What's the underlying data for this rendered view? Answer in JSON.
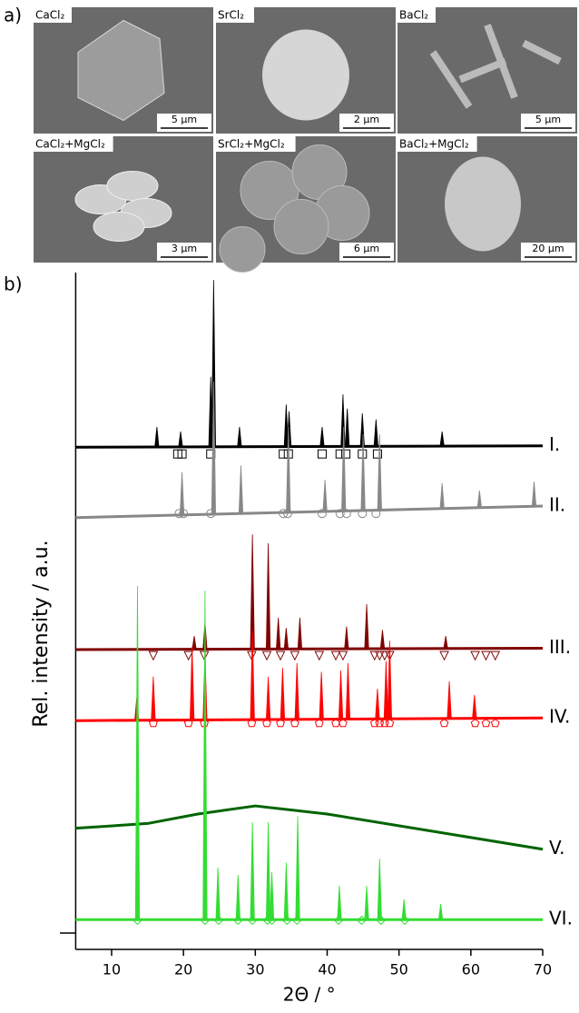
{
  "panel_labels": [
    "a)",
    "b)"
  ],
  "images": [
    {
      "label": "CaCl₂",
      "scale": "5 µm"
    },
    {
      "label": "SrCl₂",
      "scale": "2 µm"
    },
    {
      "label": "BaCl₂",
      "scale": "5 µm"
    },
    {
      "label": "CaCl₂+MgCl₂",
      "scale": "3 µm"
    },
    {
      "label": "SrCl₂+MgCl₂",
      "scale": "6 µm"
    },
    {
      "label": "BaCl₂+MgCl₂",
      "scale": "20 µm"
    }
  ],
  "chart_data": {
    "type": "peaks",
    "ylabel": "Rel. intensity / a.u.",
    "xlabel": "2Θ / °",
    "xlim": [
      5,
      70
    ],
    "xticks": [
      10,
      20,
      30,
      40,
      50,
      60,
      70
    ],
    "ylim": [
      0,
      100
    ],
    "series": [
      {
        "name": "I.",
        "color": "#000000",
        "baseline": {
          "x": [
            5,
            70
          ],
          "values": [
            74.2,
            74.4
          ]
        },
        "peaks": {
          "x": [
            16.3,
            19.6,
            23.8,
            24.2,
            27.8,
            34.3,
            34.7,
            39.3,
            42.2,
            42.8,
            44.9,
            46.8,
            56
          ],
          "values": [
            77.2,
            76.5,
            84.6,
            98.9,
            77.2,
            80.5,
            79.5,
            77.2,
            82.0,
            79.9,
            79.2,
            78.3,
            76.5
          ]
        },
        "markers": {
          "symbol": "square",
          "x": [
            19.2,
            19.8,
            23.8,
            33.9,
            34.6,
            39.3,
            41.8,
            42.6,
            44.9,
            47.0
          ],
          "y": 73.2
        }
      },
      {
        "name": "II.",
        "color": "#888888",
        "baseline": {
          "x": [
            5,
            70
          ],
          "values": [
            63.8,
            65.5
          ]
        },
        "peaks": {
          "x": [
            19.8,
            24.2,
            28.0,
            34.6,
            39.7,
            42.3,
            45.0,
            47.3,
            56.0,
            61.2,
            68.8
          ],
          "values": [
            70.5,
            83.9,
            71.5,
            77.2,
            69.4,
            77.2,
            76.1,
            76.1,
            68.9,
            67.8,
            69.1
          ]
        },
        "markers": {
          "symbol": "circle",
          "x": [
            19.4,
            20.0,
            23.8,
            33.9,
            34.5,
            39.3,
            41.8,
            42.7,
            44.9,
            46.8
          ],
          "y": 64.4
        }
      },
      {
        "name": "III.",
        "color": "#800000",
        "baseline": {
          "x": [
            5,
            70
          ],
          "values": [
            44.3,
            44.5
          ]
        },
        "peaks": {
          "x": [
            21.5,
            23.0,
            29.6,
            31.8,
            33.2,
            34.3,
            36.2,
            42.7,
            45.5,
            47.7,
            56.5
          ],
          "values": [
            46.3,
            48.3,
            61.3,
            60.0,
            49.0,
            47.5,
            49.0,
            47.7,
            51.0,
            47.2,
            46.3
          ]
        },
        "markers": {
          "symbol": "triangle",
          "x": [
            15.8,
            20.7,
            22.9,
            29.5,
            31.6,
            33.5,
            35.5,
            38.9,
            41.2,
            42.2,
            46.6,
            47.3,
            48.0,
            48.7,
            56.3,
            60.6,
            62.1,
            63.4
          ],
          "y": 43.4
        }
      },
      {
        "name": "IV.",
        "color": "#ff0000",
        "baseline": {
          "x": [
            5,
            70
          ],
          "values": [
            33.8,
            34.2
          ]
        },
        "peaks": {
          "x": [
            13.5,
            15.8,
            21.2,
            23.0,
            29.6,
            31.8,
            33.8,
            35.8,
            39.2,
            41.9,
            42.9,
            47.0,
            48.2,
            48.7,
            57.0,
            60.5
          ],
          "values": [
            37.2,
            40.3,
            44.7,
            43.6,
            47.0,
            40.3,
            41.6,
            42.3,
            41.0,
            41.2,
            42.3,
            38.5,
            42.6,
            45.6,
            39.6,
            37.6
          ]
        },
        "markers": {
          "symbol": "pentagon",
          "x": [
            15.8,
            20.7,
            22.9,
            29.5,
            31.6,
            33.5,
            35.5,
            38.9,
            41.2,
            42.2,
            46.6,
            47.3,
            48.0,
            48.7,
            56.3,
            60.6,
            62.1,
            63.4
          ],
          "y": 33.4
        }
      },
      {
        "name": "V.",
        "color": "#006400",
        "baseline": {
          "x": [
            5,
            15,
            22,
            30,
            40,
            55,
            70
          ],
          "values": [
            17.9,
            18.6,
            20.0,
            21.2,
            20.0,
            17.4,
            14.8
          ]
        },
        "peaks": {
          "x": [],
          "values": []
        }
      },
      {
        "name": "VI.",
        "color": "#33dd33",
        "baseline": {
          "x": [
            5,
            70
          ],
          "values": [
            4.4,
            4.4
          ]
        },
        "peaks": {
          "x": [
            13.6,
            23.0,
            24.8,
            27.6,
            29.6,
            31.8,
            32.3,
            34.3,
            35.9,
            41.7,
            45.5,
            47.3,
            50.7,
            55.8
          ],
          "values": [
            53.7,
            53.0,
            12.1,
            11.0,
            18.8,
            18.8,
            11.4,
            12.8,
            19.7,
            9.4,
            9.4,
            13.4,
            7.4,
            6.7
          ]
        },
        "markers": {
          "symbol": "diamond",
          "x": [
            13.6,
            23.0,
            24.9,
            27.6,
            29.6,
            31.7,
            32.3,
            34.4,
            35.8,
            41.6,
            44.8,
            47.5,
            50.8
          ],
          "y": 4.3
        }
      }
    ]
  }
}
